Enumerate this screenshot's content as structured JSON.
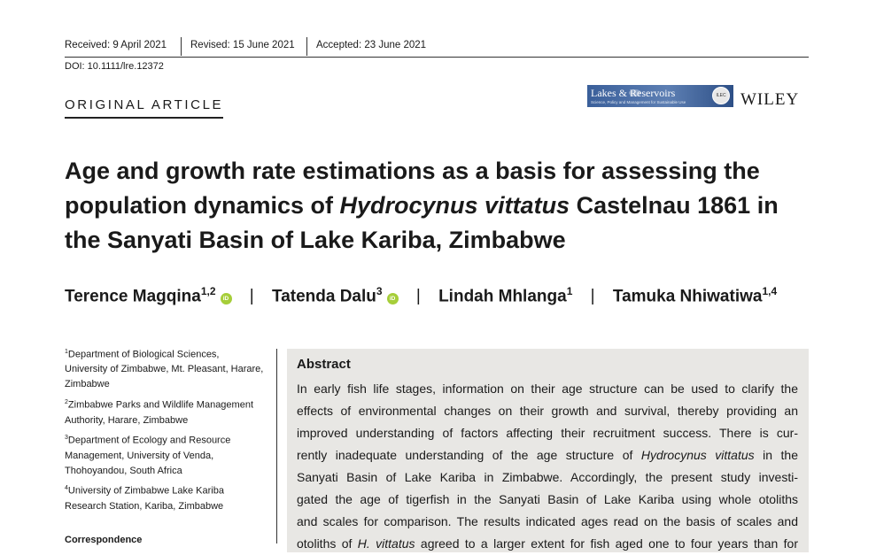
{
  "header": {
    "received": "Received: 9 April 2021",
    "revised": "Revised: 15 June 2021",
    "accepted": "Accepted: 23 June 2021",
    "doi": "DOI: 10.1111/lre.12372",
    "article_type": "ORIGINAL ARTICLE"
  },
  "journal": {
    "name": "Lakes & Reservoirs",
    "subtitle": "Science, Policy and Management for Sustainable Use",
    "seal_text": "ILEC",
    "publisher": "WILEY"
  },
  "title": {
    "part1": "Age and growth rate estimations as a basis for assessing the population dynamics of ",
    "species": "Hydrocynus vittatus",
    "part2": " Castelnau 1861 in the Sanyati Basin of Lake Kariba, Zimbabwe"
  },
  "authors": [
    {
      "name": "Terence Magqina",
      "affil": "1,2",
      "orcid": "iD"
    },
    {
      "name": "Tatenda Dalu",
      "affil": "3",
      "orcid": "iD"
    },
    {
      "name": "Lindah Mhlanga",
      "affil": "1"
    },
    {
      "name": "Tamuka Nhiwatiwa",
      "affil": "1,4"
    }
  ],
  "author_separator": "|",
  "affiliations": [
    {
      "num": "1",
      "text": "Department of Biological Sciences, University of Zimbabwe, Mt. Pleasant, Harare, Zimbabwe"
    },
    {
      "num": "2",
      "text": "Zimbabwe Parks and Wildlife Management Authority, Harare, Zimbabwe"
    },
    {
      "num": "3",
      "text": "Department of Ecology and Resource Management, University of Venda, Thohoyandou, South Africa"
    },
    {
      "num": "4",
      "text": "University of Zimbabwe Lake Kariba Research Station, Kariba, Zimbabwe"
    }
  ],
  "correspondence_label": "Correspondence",
  "abstract": {
    "heading": "Abstract",
    "lines": [
      "In early fish life stages, information on their age structure can be used to clarify the",
      "effects of environmental changes on their growth and survival, thereby providing an",
      "improved understanding of factors affecting their recruitment success. There is cur-",
      "rently inadequate understanding of the age structure of ",
      "Sanyati Basin of Lake Kariba in Zimbabwe. Accordingly, the present study investi-",
      "gated the age of tigerfish in the Sanyati Basin of Lake Kariba using whole otoliths",
      "and scales for comparison. The results indicated ages read on the basis of scales and",
      "otoliths of "
    ],
    "line4_species": "Hydrocynus vittatus",
    "line4_tail": " in the",
    "line8_species": "H. vittatus",
    "line8_tail": " agreed to a larger extent for fish aged one to four years than for"
  }
}
